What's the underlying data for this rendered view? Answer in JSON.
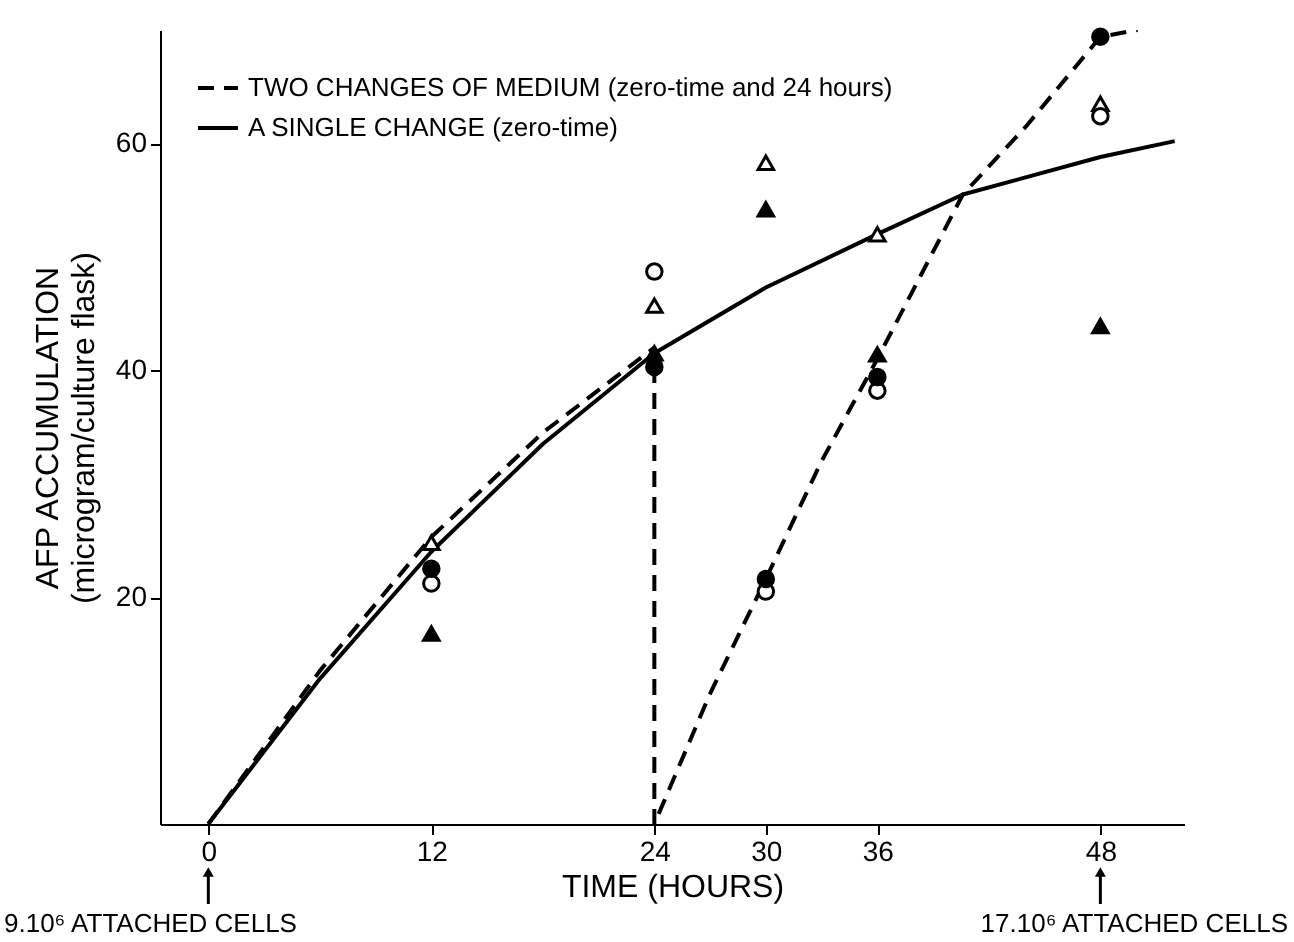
{
  "chart_data": {
    "type": "scatter",
    "xlabel": "TIME (HOURS)",
    "ylabel": "AFP ACCUMULATION\n(microgram/culture flask)",
    "xlim": [
      -2.6,
      52.5
    ],
    "ylim": [
      0,
      70
    ],
    "xticks": [
      0,
      12,
      24,
      30,
      36,
      48
    ],
    "yticks": [
      20,
      40,
      60
    ],
    "grid": false,
    "legend": "top left",
    "series": [
      {
        "name": "TWO CHANGES OF MEDIUM (zero-time and 24 hours)",
        "type": "line",
        "line_style": "dashed",
        "color": "#000000",
        "x": [
          0,
          6,
          12,
          18,
          24,
          24,
          27,
          30,
          33,
          36,
          40.6,
          44,
          48,
          50
        ],
        "values": [
          0,
          13.5,
          25.3,
          34.5,
          42,
          0,
          11.5,
          21.6,
          32,
          41,
          55.5,
          61.5,
          69.4,
          70
        ]
      },
      {
        "name": "A SINGLE CHANGE (zero-time)",
        "type": "line",
        "line_style": "solid",
        "color": "#000000",
        "x": [
          0,
          6,
          12,
          18,
          24,
          30,
          36,
          40.6,
          48,
          52
        ],
        "values": [
          0,
          12.8,
          24,
          33.5,
          41.5,
          47.3,
          52,
          55.5,
          58.8,
          60.2
        ]
      },
      {
        "marker": "triangle",
        "color": "#ffffff",
        "x": [
          12,
          24,
          30,
          36,
          48
        ],
        "values": [
          24.8,
          45.7,
          58.3,
          52,
          63.5
        ]
      },
      {
        "marker": "triangle",
        "color": "#000000",
        "x": [
          12,
          24,
          30,
          36,
          48
        ],
        "values": [
          16.8,
          41.5,
          54.2,
          41.4,
          43.9
        ]
      },
      {
        "marker": "circle",
        "color": "#ffffff",
        "x": [
          12,
          24,
          30,
          36,
          48
        ],
        "values": [
          21.2,
          48.7,
          20.5,
          38.2,
          62.4
        ]
      },
      {
        "marker": "circle",
        "color": "#000000",
        "x": [
          12,
          24,
          30,
          36,
          48
        ],
        "values": [
          22.5,
          40.3,
          21.6,
          39.4,
          69.4
        ]
      }
    ],
    "annotations": [
      "9.10⁶ ATTACHED CELLS",
      "17.10⁶ ATTACHED CELLS"
    ]
  }
}
